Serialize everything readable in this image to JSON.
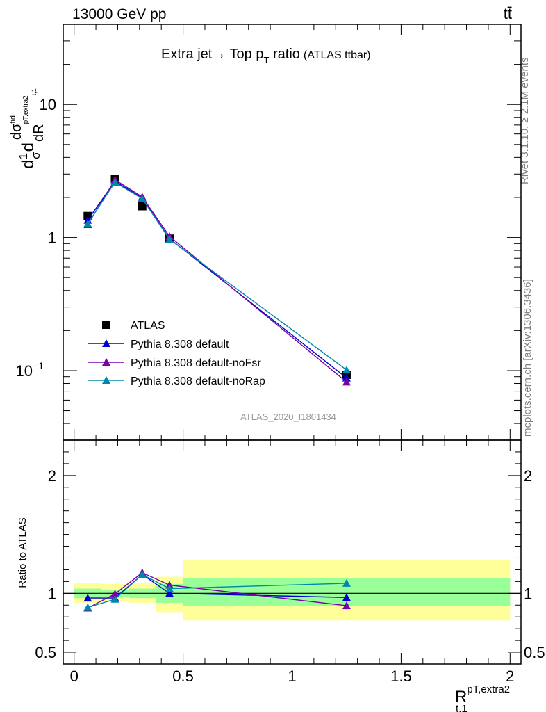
{
  "header": {
    "energy": "13000 GeV pp",
    "process": "tt̄"
  },
  "chart_data": [
    {
      "type": "line",
      "title": "Extra jet→ Top p",
      "title_sub": "T",
      "title_tail": " ratio",
      "title_note": "(ATLAS ttbar)",
      "ylabel": "1/σ dσ^fid/dR_{t,1}^{pT,extra2}",
      "yscale": "log",
      "ylim": [
        0.03,
        40
      ],
      "y_ticks": [
        {
          "value": 0.1,
          "label": "10",
          "exp": "−1"
        },
        {
          "value": 1,
          "label": "1",
          "exp": ""
        },
        {
          "value": 10,
          "label": "10",
          "exp": ""
        }
      ],
      "xlim": [
        -0.05,
        2.05
      ],
      "watermark": "ATLAS_2020_I1801434",
      "legend_position": "center-left",
      "series": [
        {
          "name": "ATLAS",
          "color": "#000000",
          "marker": "square",
          "x": [
            0.0625,
            0.1875,
            0.3125,
            0.4375,
            1.25
          ],
          "y": [
            1.45,
            2.75,
            1.72,
            0.98,
            0.093
          ]
        },
        {
          "name": "Pythia 8.308 default",
          "color": "#0000cc",
          "marker": "triangle",
          "x": [
            0.0625,
            0.1875,
            0.3125,
            0.4375,
            1.25
          ],
          "y": [
            1.35,
            2.65,
            1.98,
            0.98,
            0.088
          ]
        },
        {
          "name": "Pythia 8.308 default-noFsr",
          "color": "#7a00a8",
          "marker": "triangle",
          "x": [
            0.0625,
            0.1875,
            0.3125,
            0.4375,
            1.25
          ],
          "y": [
            1.25,
            2.72,
            2.02,
            1.02,
            0.082
          ]
        },
        {
          "name": "Pythia 8.308 default-noRap",
          "color": "#0088aa",
          "marker": "triangle",
          "x": [
            0.0625,
            0.1875,
            0.3125,
            0.4375,
            1.25
          ],
          "y": [
            1.27,
            2.6,
            1.96,
            0.97,
            0.101
          ]
        }
      ]
    },
    {
      "type": "line",
      "ylabel": "Ratio to ATLAS",
      "xlabel": "R",
      "xlabel_sup": "pT,extra2",
      "xlabel_sub": "t,1",
      "ylim": [
        0.4,
        2.3
      ],
      "y_ticks": [
        0.5,
        1,
        2
      ],
      "y_tick_labels": [
        "0.5",
        "1",
        "2"
      ],
      "xlim": [
        -0.05,
        2.05
      ],
      "x_ticks": [
        0,
        0.5,
        1,
        1.5,
        2
      ],
      "x_tick_labels": [
        "0",
        "0.5",
        "1",
        "1.5",
        "2"
      ],
      "uncertainty_bands": [
        {
          "x0": 0.0,
          "x1": 0.125,
          "outer": [
            0.92,
            1.09
          ],
          "inner": [
            0.96,
            1.04
          ]
        },
        {
          "x0": 0.125,
          "x1": 0.25,
          "outer": [
            0.93,
            1.08
          ],
          "inner": [
            0.97,
            1.03
          ]
        },
        {
          "x0": 0.25,
          "x1": 0.375,
          "outer": [
            0.92,
            1.09
          ],
          "inner": [
            0.96,
            1.04
          ]
        },
        {
          "x0": 0.375,
          "x1": 0.5,
          "outer": [
            0.84,
            1.14
          ],
          "inner": [
            0.92,
            1.08
          ]
        },
        {
          "x0": 0.5,
          "x1": 2.0,
          "outer": [
            0.77,
            1.28
          ],
          "inner": [
            0.89,
            1.13
          ]
        }
      ],
      "band_colors": {
        "outer": "#ffff99",
        "inner": "#99ff99"
      },
      "series": [
        {
          "name": "Pythia 8.308 default",
          "color": "#0000cc",
          "x": [
            0.0625,
            0.1875,
            0.3125,
            0.4375,
            1.25
          ],
          "y": [
            0.96,
            0.96,
            1.16,
            1.0,
            0.965
          ],
          "err": [
            0.03,
            0.02,
            0.03,
            0.03,
            0.03
          ]
        },
        {
          "name": "Pythia 8.308 default-noFsr",
          "color": "#7a00a8",
          "x": [
            0.0625,
            0.1875,
            0.3125,
            0.4375,
            1.25
          ],
          "y": [
            0.875,
            0.995,
            1.175,
            1.07,
            0.895
          ],
          "err": [
            0.03,
            0.02,
            0.03,
            0.03,
            0.03
          ]
        },
        {
          "name": "Pythia 8.308 default-noRap",
          "color": "#0088aa",
          "x": [
            0.0625,
            0.1875,
            0.3125,
            0.4375,
            1.25
          ],
          "y": [
            0.88,
            0.95,
            1.16,
            1.04,
            1.085
          ],
          "err": [
            0.03,
            0.02,
            0.03,
            0.03,
            0.03
          ]
        }
      ]
    }
  ],
  "side_labels": {
    "rivet": "Rivet 3.1.10, ≥ 2.1M events",
    "source": "mcplots.cern.ch [arXiv:1306.3436]"
  }
}
